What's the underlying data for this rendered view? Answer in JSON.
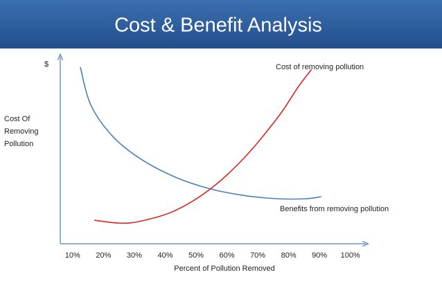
{
  "chart_data": {
    "type": "line",
    "title": "Cost & Benefit Analysis",
    "x_label": "Percent of Pollution Removed",
    "y_label_top": "$",
    "y_label": [
      "Cost Of",
      "Removing",
      "Pollution"
    ],
    "xlim": [
      6,
      105
    ],
    "ylim": [
      0,
      100
    ],
    "xticks": [
      {
        "value": 10,
        "label": "10%"
      },
      {
        "value": 20,
        "label": "20%"
      },
      {
        "value": 30,
        "label": "30%"
      },
      {
        "value": 40,
        "label": "40%"
      },
      {
        "value": 50,
        "label": "50%"
      },
      {
        "value": 60,
        "label": "60%"
      },
      {
        "value": 70,
        "label": "70%"
      },
      {
        "value": 80,
        "label": "80%"
      },
      {
        "value": 90,
        "label": "90%"
      },
      {
        "value": 100,
        "label": "100%"
      }
    ],
    "series": [
      {
        "name": "Benefits from removing pollution",
        "color": "#4a7ebb",
        "x": [
          12.5,
          15.8,
          22.6,
          31.5,
          42.8,
          54,
          65.2,
          76.4,
          85.4,
          90.6
        ],
        "values": [
          93.8,
          74,
          57.7,
          45.6,
          35.7,
          29.4,
          25.7,
          23.9,
          23.9,
          25
        ]
      },
      {
        "name": "Cost of removing pollution",
        "color": "#e0201b",
        "x": [
          17,
          24.8,
          31.5,
          42.8,
          54,
          65.2,
          76.4,
          83.2,
          87.4
        ],
        "values": [
          12.5,
          11,
          11.8,
          17.3,
          28.3,
          44.9,
          66.9,
          83.5,
          92.5
        ]
      }
    ]
  }
}
